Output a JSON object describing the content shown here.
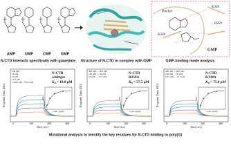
{
  "header": {
    "molecules": [
      "AMP",
      "UMP",
      "CMP",
      "GMP"
    ],
    "captions": [
      "N-CTD interacts specifically with guanylate",
      "Structure of N-CTD in complex with GMP",
      "GMP-binding mode analysis"
    ],
    "binding_labels": [
      "Pocket",
      "K338",
      "R259",
      "K338",
      "GMP"
    ]
  },
  "panels": [
    {
      "name": "N-CTD",
      "variant": "wildtype",
      "kd_symbol": "K",
      "kd_sub": "D",
      "kd_value": "= 18.8 μM",
      "legend": [
        "100 μM",
        "50 μM",
        "25 μM",
        "12.5 μM",
        "1.5625 μM - 3.125 μM"
      ]
    },
    {
      "name": "N-CTD",
      "variant": "R259A",
      "kd_symbol": "K",
      "kd_sub": "D",
      "kd_value": "= 57.5 μM",
      "legend": [
        "400 μM — 200 μM",
        "100 μM — 50 μM",
        "25 μM — 12.5 μM"
      ]
    },
    {
      "name": "N-CTD",
      "variant": "K338A",
      "kd_symbol": "K",
      "kd_sub": "D",
      "kd_value": "= 75.0 μM",
      "legend": [
        "400 μM — 200 μM",
        "100 μM — 50 μM",
        "6.25 μM — 12.5 μM"
      ]
    }
  ],
  "axes": {
    "y_label": "Response Units (RU)",
    "x_label": "Time (sec)",
    "x_ticks": [
      "0",
      "100",
      "200",
      "300"
    ],
    "inset_y": "RU",
    "inset_x": "Conc. (μM)"
  },
  "footer": {
    "caption": "Mutational analysis to identify the key residues for N-CTD binding to poly(G)"
  }
}
